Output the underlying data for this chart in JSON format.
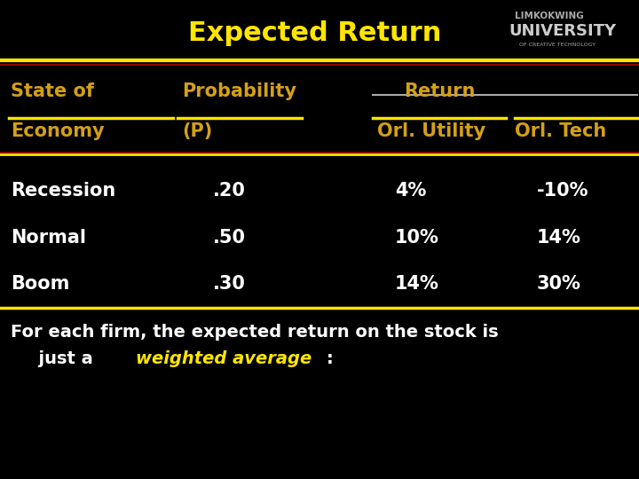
{
  "title": "Expected Return",
  "title_color": "#FFE500",
  "bg_color": "#000000",
  "yellow_line_color": "#FFE500",
  "darkred_line_color": "#8B0000",
  "white_line_color": "#CCCCCC",
  "header_color": "#D4A017",
  "data_color": "#FFFFFF",
  "footer_color": "#FFFFFF",
  "footer_italic_color": "#FFE500",
  "col1_header1": "State of",
  "col1_header2": "Economy",
  "col2_header1": "Probability",
  "col2_header2": "(P)",
  "col3_header1": "Return",
  "col3_header2": "Orl. Utility",
  "col4_header2": "Orl. Tech",
  "rows": [
    [
      "Recession",
      ".20",
      "4%",
      "-10%"
    ],
    [
      "Normal",
      ".50",
      "10%",
      "14%"
    ],
    [
      "Boom",
      ".30",
      "14%",
      "30%"
    ]
  ],
  "footer1": "For each firm, the expected return on the stock is",
  "footer2a": "  just a  ",
  "footer2b": "weighted average",
  "footer2c": ":",
  "logo1": "LIMKOKWING",
  "logo2": "UNIVERSITY",
  "logo3": "OF CREATIVE TECHNOLOGY"
}
